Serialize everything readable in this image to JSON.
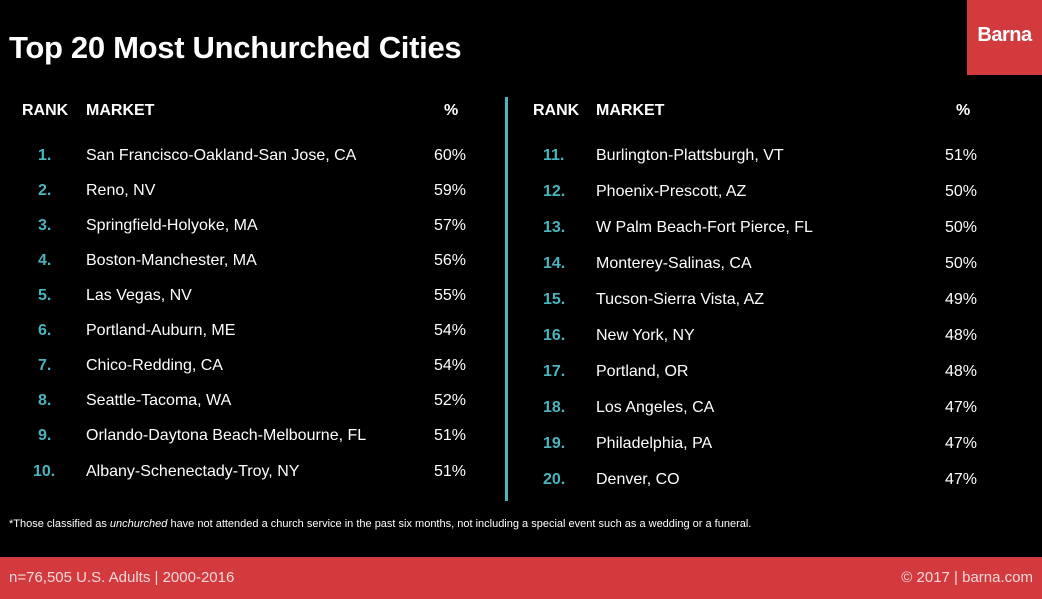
{
  "title": "Top 20 Most Unchurched Cities",
  "logo_text": "Barna",
  "colors": {
    "background": "#000000",
    "accent": "#d23a3e",
    "rank_color": "#4ab5be",
    "divider": "#4ab5be"
  },
  "headers": {
    "rank": "RANK",
    "market": "MARKET",
    "pct": "%"
  },
  "chart_data": {
    "type": "table",
    "title": "Top 20 Most Unchurched Cities",
    "columns": [
      "RANK",
      "MARKET",
      "%"
    ],
    "rows": [
      {
        "rank": "1.",
        "market": "San Francisco-Oakland-San Jose, CA",
        "pct": "60%"
      },
      {
        "rank": "2.",
        "market": "Reno, NV",
        "pct": "59%"
      },
      {
        "rank": "3.",
        "market": "Springfield-Holyoke, MA",
        "pct": "57%"
      },
      {
        "rank": "4.",
        "market": "Boston-Manchester, MA",
        "pct": "56%"
      },
      {
        "rank": "5.",
        "market": "Las Vegas, NV",
        "pct": "55%"
      },
      {
        "rank": "6.",
        "market": "Portland-Auburn, ME",
        "pct": "54%"
      },
      {
        "rank": "7.",
        "market": "Chico-Redding, CA",
        "pct": "54%"
      },
      {
        "rank": "8.",
        "market": "Seattle-Tacoma, WA",
        "pct": "52%"
      },
      {
        "rank": "9.",
        "market": "Orlando-Daytona Beach-Melbourne, FL",
        "pct": "51%"
      },
      {
        "rank": "10.",
        "market": "Albany-Schenectady-Troy, NY",
        "pct": "51%"
      },
      {
        "rank": "11.",
        "market": "Burlington-Plattsburgh, VT",
        "pct": "51%"
      },
      {
        "rank": "12.",
        "market": "Phoenix-Prescott, AZ",
        "pct": "50%"
      },
      {
        "rank": "13.",
        "market": "W Palm Beach-Fort Pierce, FL",
        "pct": "50%"
      },
      {
        "rank": "14.",
        "market": "Monterey-Salinas, CA",
        "pct": "50%"
      },
      {
        "rank": "15.",
        "market": "Tucson-Sierra Vista, AZ",
        "pct": "49%"
      },
      {
        "rank": "16.",
        "market": "New York, NY",
        "pct": "48%"
      },
      {
        "rank": "17.",
        "market": "Portland, OR",
        "pct": "48%"
      },
      {
        "rank": "18.",
        "market": "Los Angeles, CA",
        "pct": "47%"
      },
      {
        "rank": "19.",
        "market": "Philadelphia, PA",
        "pct": "47%"
      },
      {
        "rank": "20.",
        "market": "Denver, CO",
        "pct": "47%"
      }
    ]
  },
  "footnote": {
    "before": "*Those classified as ",
    "emphasis": "unchurched",
    "after": " have not attended a church service in the past six months, not including a special event such as a wedding or a funeral."
  },
  "footer": {
    "left": "n=76,505 U.S. Adults | 2000-2016",
    "right": "© 2017 | barna.com"
  }
}
